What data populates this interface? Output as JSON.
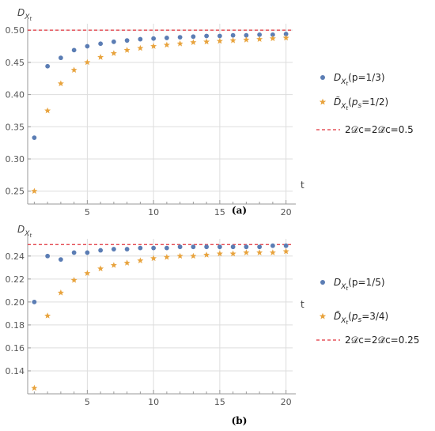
{
  "chart_data": [
    {
      "panel_label": "(a)",
      "type": "scatter",
      "ylabel": "D",
      "ylabel_sub": "X",
      "ylabel_subsub": "t",
      "xlabel": "t",
      "xlim": [
        0.5,
        20.5
      ],
      "ylim": [
        0.23,
        0.51
      ],
      "xticks": [
        5,
        10,
        15,
        20
      ],
      "yticks": [
        0.25,
        0.3,
        0.35,
        0.4,
        0.45,
        0.5
      ],
      "ytick_labels": [
        "0.25",
        "0.30",
        "0.35",
        "0.40",
        "0.45",
        "0.50"
      ],
      "grid": true,
      "series": [
        {
          "name_main": "D",
          "name_sub": "X",
          "name_subsub": "t",
          "name_param": "(p=1/3)",
          "marker": "dot",
          "color": "#5b7db4",
          "x": [
            1,
            2,
            3,
            4,
            5,
            6,
            7,
            8,
            9,
            10,
            11,
            12,
            13,
            14,
            15,
            16,
            17,
            18,
            19,
            20
          ],
          "values": [
            0.333,
            0.444,
            0.457,
            0.469,
            0.475,
            0.479,
            0.482,
            0.484,
            0.486,
            0.487,
            0.488,
            0.489,
            0.49,
            0.491,
            0.491,
            0.492,
            0.492,
            0.493,
            0.493,
            0.494
          ]
        },
        {
          "name_main": "D̃",
          "name_sub": "X",
          "name_subsub": "t",
          "name_param_pre": "(",
          "name_param_p": "p",
          "name_param_psub": "s",
          "name_param_post": "=1/2)",
          "marker": "star",
          "color": "#e8a33d",
          "x": [
            1,
            2,
            3,
            4,
            5,
            6,
            7,
            8,
            9,
            10,
            11,
            12,
            13,
            14,
            15,
            16,
            17,
            18,
            19,
            20
          ],
          "values": [
            0.25,
            0.375,
            0.417,
            0.438,
            0.45,
            0.458,
            0.464,
            0.469,
            0.472,
            0.475,
            0.477,
            0.479,
            0.481,
            0.482,
            0.483,
            0.484,
            0.485,
            0.486,
            0.487,
            0.488
          ]
        }
      ],
      "reference_line": {
        "value": 0.5,
        "color": "#e0303a",
        "label": "2𝒟c=2𝒟̃c=0.5"
      }
    },
    {
      "panel_label": "(b)",
      "type": "scatter",
      "ylabel": "D",
      "ylabel_sub": "X",
      "ylabel_subsub": "t",
      "xlabel": "t",
      "xlim": [
        0.5,
        20.5
      ],
      "ylim": [
        0.12,
        0.255
      ],
      "xticks": [
        5,
        10,
        15,
        20
      ],
      "yticks": [
        0.14,
        0.16,
        0.18,
        0.2,
        0.22,
        0.24
      ],
      "ytick_labels": [
        "0.14",
        "0.16",
        "0.18",
        "0.20",
        "0.22",
        "0.24"
      ],
      "grid": true,
      "series": [
        {
          "name_main": "D",
          "name_sub": "X",
          "name_subsub": "t",
          "name_param": "(p=1/5)",
          "marker": "dot",
          "color": "#5b7db4",
          "x": [
            1,
            2,
            3,
            4,
            5,
            6,
            7,
            8,
            9,
            10,
            11,
            12,
            13,
            14,
            15,
            16,
            17,
            18,
            19,
            20
          ],
          "values": [
            0.2,
            0.24,
            0.237,
            0.243,
            0.243,
            0.245,
            0.246,
            0.246,
            0.247,
            0.247,
            0.247,
            0.248,
            0.248,
            0.248,
            0.248,
            0.248,
            0.248,
            0.248,
            0.249,
            0.249
          ]
        },
        {
          "name_main": "D̃",
          "name_sub": "X",
          "name_subsub": "t",
          "name_param_pre": "(",
          "name_param_p": "p",
          "name_param_psub": "s",
          "name_param_post": "=3/4)",
          "marker": "star",
          "color": "#e8a33d",
          "x": [
            1,
            2,
            3,
            4,
            5,
            6,
            7,
            8,
            9,
            10,
            11,
            12,
            13,
            14,
            15,
            16,
            17,
            18,
            19,
            20
          ],
          "values": [
            0.125,
            0.188,
            0.208,
            0.219,
            0.225,
            0.229,
            0.232,
            0.234,
            0.236,
            0.238,
            0.239,
            0.24,
            0.24,
            0.241,
            0.242,
            0.242,
            0.243,
            0.243,
            0.243,
            0.244
          ]
        }
      ],
      "reference_line": {
        "value": 0.25,
        "color": "#e0303a",
        "label": "2𝒟c=2𝒟̃c=0.25"
      }
    }
  ]
}
